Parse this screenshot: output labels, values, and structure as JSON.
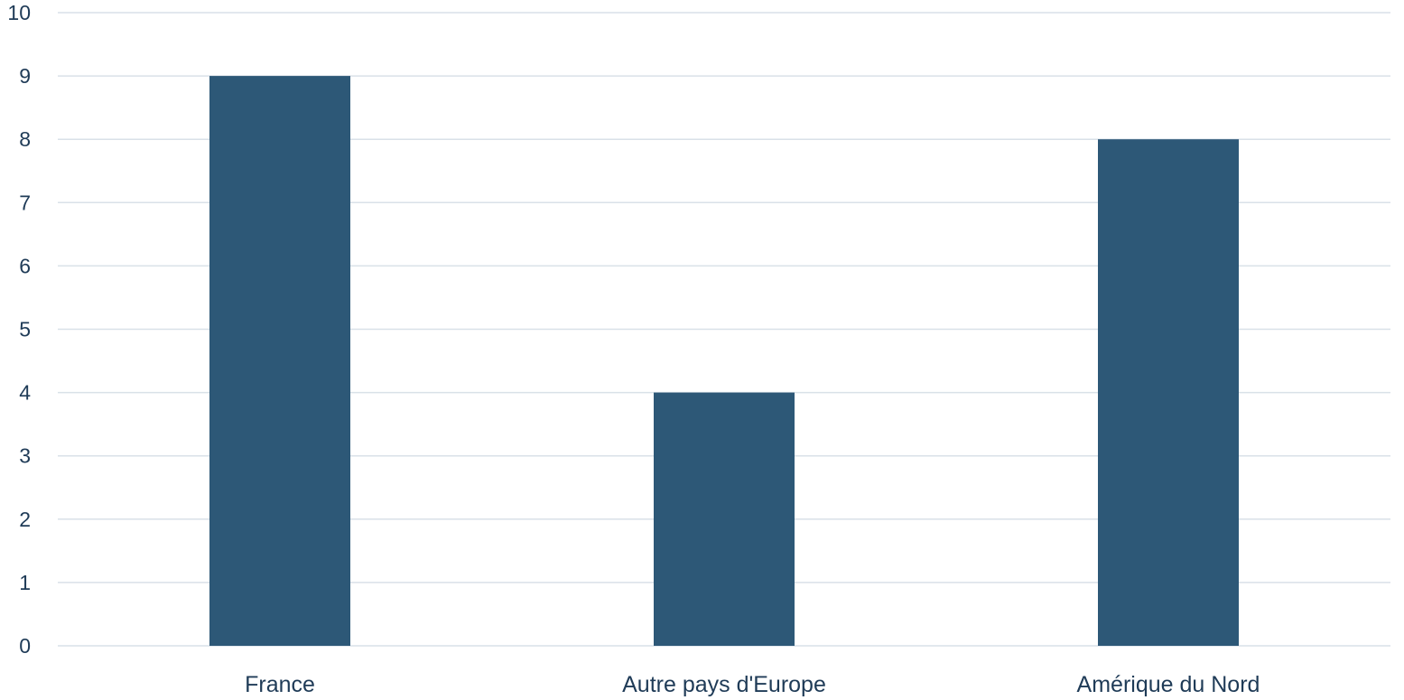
{
  "chart_data": {
    "type": "bar",
    "categories": [
      "France",
      "Autre pays d'Europe",
      "Amérique du Nord"
    ],
    "values": [
      9,
      4,
      8
    ],
    "title": "",
    "xlabel": "",
    "ylabel": "",
    "ylim": [
      0,
      10
    ],
    "yticks": [
      "0",
      "1",
      "2",
      "3",
      "4",
      "5",
      "6",
      "7",
      "8",
      "9",
      "10"
    ],
    "grid": true,
    "legend": "none",
    "colors": {
      "bar": "#2d5877",
      "grid": "#d9e1e8",
      "text": "#1f3b57"
    }
  }
}
